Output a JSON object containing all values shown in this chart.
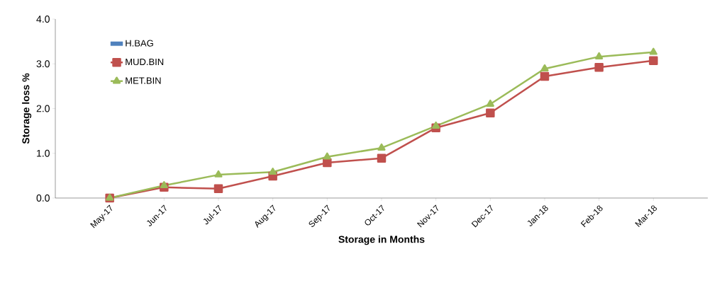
{
  "chart_data": {
    "type": "line",
    "xlabel": "Storage in Months",
    "ylabel": "Storage loss %",
    "categories": [
      "May-17",
      "Jun-17",
      "Jul-17",
      "Aug-17",
      "Sep-17",
      "Oct-17",
      "Nov-17",
      "Dec-17",
      "Jan-18",
      "Feb-18",
      "Mar-18"
    ],
    "ylim": [
      0,
      4
    ],
    "yticks": [
      {
        "value": 0,
        "label": "0.0"
      },
      {
        "value": 1,
        "label": "1.0"
      },
      {
        "value": 2,
        "label": "2.0"
      },
      {
        "value": 3,
        "label": "3.0"
      },
      {
        "value": 4,
        "label": "4.0"
      }
    ],
    "grid": false,
    "legend": "top left",
    "series": [
      {
        "name": "H.BAG",
        "type": "bar",
        "color": "#4f81bd",
        "values": [
          null,
          null,
          null,
          null,
          null,
          null,
          null,
          null,
          null,
          null,
          null
        ]
      },
      {
        "name": "MUD.BIN",
        "color": "#c0504d",
        "marker": "square",
        "values": [
          0,
          0.24,
          0.21,
          0.49,
          0.79,
          0.89,
          1.57,
          1.9,
          2.72,
          2.92,
          3.07
        ]
      },
      {
        "name": "MET.BIN",
        "color": "#9bbb59",
        "marker": "triangle",
        "values": [
          0,
          0.28,
          0.52,
          0.58,
          0.92,
          1.12,
          1.61,
          2.1,
          2.89,
          3.16,
          3.26
        ]
      }
    ]
  }
}
